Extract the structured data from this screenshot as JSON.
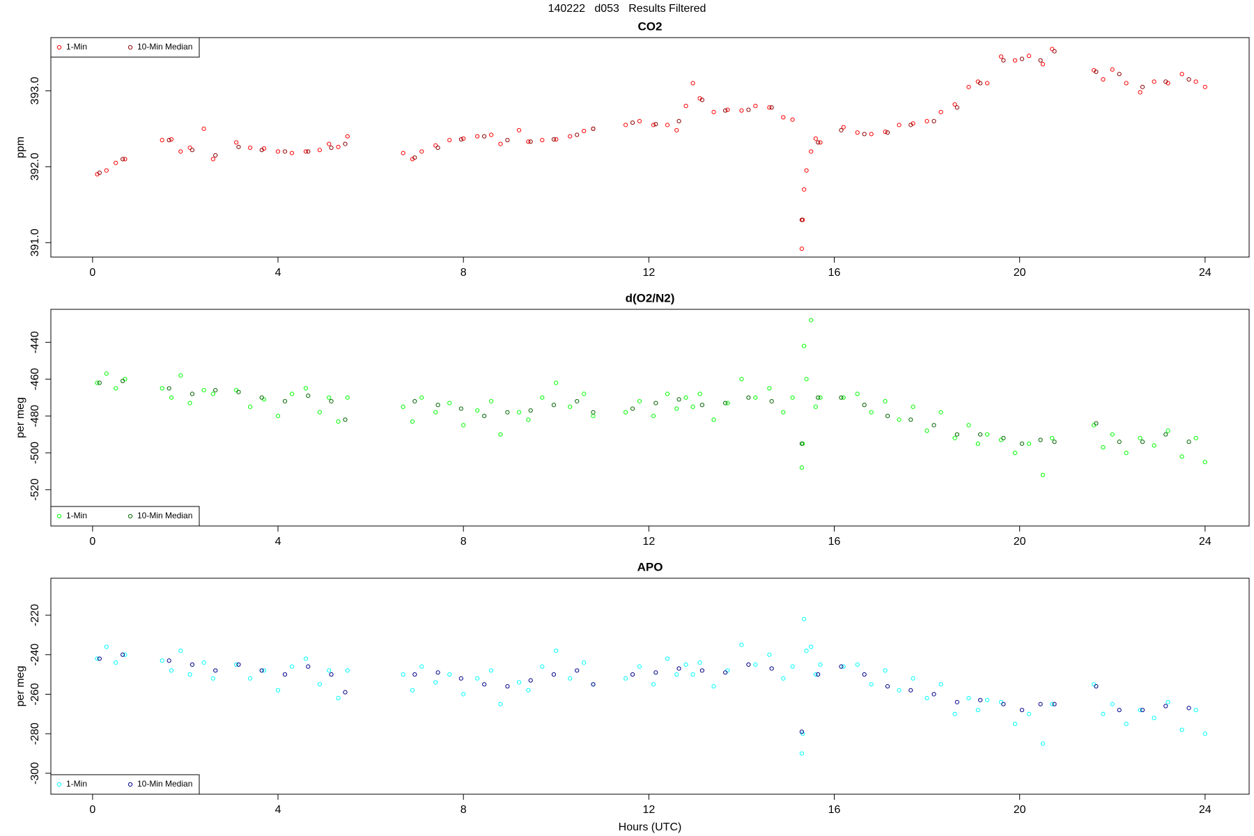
{
  "title": "140222   d053   Results Filtered",
  "chart_data": [
    {
      "type": "scatter",
      "title": "CO2",
      "ylabel": "ppm",
      "xlim": [
        -0.9,
        24.95
      ],
      "xticks": [
        0,
        4,
        8,
        12,
        16,
        20,
        24
      ],
      "ylim": [
        390.81,
        393.7
      ],
      "yticks": [
        {
          "value": 391,
          "label": "391.0"
        },
        {
          "value": 392,
          "label": "392.0"
        },
        {
          "value": 393,
          "label": "393.0"
        }
      ],
      "legend": "top-left",
      "series": [
        {
          "name": "1-Min",
          "color": "#ff0000",
          "x": [
            0.1,
            0.3,
            0.5,
            0.7,
            1.5,
            1.7,
            1.9,
            2.1,
            2.4,
            2.6,
            3.1,
            3.4,
            3.7,
            4.0,
            4.3,
            4.6,
            4.9,
            5.1,
            5.3,
            5.5,
            6.7,
            6.9,
            7.1,
            7.4,
            7.7,
            8.0,
            8.3,
            8.6,
            8.8,
            9.2,
            9.4,
            9.7,
            10.0,
            10.3,
            10.6,
            10.8,
            11.5,
            11.8,
            12.1,
            12.4,
            12.6,
            12.8,
            12.95,
            13.1,
            13.4,
            13.7,
            14.0,
            14.3,
            14.6,
            14.9,
            15.1,
            15.3,
            15.32,
            15.35,
            15.4,
            15.5,
            15.6,
            15.7,
            16.2,
            16.5,
            16.8,
            17.1,
            17.4,
            17.7,
            18.0,
            18.3,
            18.6,
            18.9,
            19.1,
            19.3,
            19.6,
            19.9,
            20.2,
            20.5,
            20.7,
            21.6,
            21.8,
            22.0,
            22.3,
            22.6,
            22.9,
            23.2,
            23.5,
            23.8,
            24.0
          ],
          "values": [
            391.9,
            391.95,
            392.05,
            392.1,
            392.35,
            392.36,
            392.2,
            392.25,
            392.5,
            392.1,
            392.32,
            392.25,
            392.24,
            392.2,
            392.18,
            392.2,
            392.22,
            392.3,
            392.26,
            392.4,
            392.18,
            392.1,
            392.2,
            392.28,
            392.35,
            392.37,
            392.4,
            392.42,
            392.3,
            392.48,
            392.33,
            392.35,
            392.36,
            392.4,
            392.47,
            392.5,
            392.55,
            392.6,
            392.55,
            392.55,
            392.48,
            392.8,
            393.1,
            392.9,
            392.72,
            392.75,
            392.74,
            392.8,
            392.78,
            392.65,
            392.62,
            390.92,
            391.3,
            391.7,
            391.95,
            392.2,
            392.37,
            392.32,
            392.52,
            392.45,
            392.43,
            392.46,
            392.55,
            392.57,
            392.6,
            392.72,
            392.82,
            393.05,
            393.12,
            393.1,
            393.45,
            393.4,
            393.46,
            393.35,
            393.55,
            393.27,
            393.15,
            393.28,
            393.1,
            392.98,
            393.12,
            393.1,
            393.22,
            393.12,
            393.05
          ]
        },
        {
          "name": "10-Min Median",
          "color": "#8b0000",
          "x": [
            0.15,
            0.65,
            1.65,
            2.15,
            2.65,
            3.15,
            3.65,
            4.15,
            4.65,
            5.15,
            5.45,
            6.95,
            7.45,
            7.95,
            8.45,
            8.95,
            9.45,
            9.95,
            10.45,
            10.8,
            11.65,
            12.15,
            12.65,
            13.15,
            13.65,
            14.15,
            14.65,
            15.3,
            15.65,
            16.15,
            16.65,
            17.15,
            17.65,
            18.15,
            18.65,
            19.15,
            19.65,
            20.05,
            20.45,
            20.75,
            21.65,
            22.15,
            22.65,
            23.15,
            23.65
          ],
          "values": [
            391.92,
            392.1,
            392.35,
            392.22,
            392.15,
            392.26,
            392.22,
            392.2,
            392.2,
            392.25,
            392.3,
            392.12,
            392.25,
            392.36,
            392.4,
            392.35,
            392.33,
            392.36,
            392.42,
            392.5,
            392.58,
            392.56,
            392.6,
            392.88,
            392.74,
            392.75,
            392.78,
            391.3,
            392.32,
            392.48,
            392.43,
            392.45,
            392.55,
            392.6,
            392.78,
            393.1,
            393.4,
            393.42,
            393.4,
            393.52,
            393.25,
            393.22,
            393.05,
            393.12,
            393.15
          ]
        }
      ]
    },
    {
      "type": "scatter",
      "title": "d(O2/N2)",
      "ylabel": "per meg",
      "xlim": [
        -0.9,
        24.95
      ],
      "xticks": [
        0,
        4,
        8,
        12,
        16,
        20,
        24
      ],
      "ylim": [
        -539.7,
        -422.1
      ],
      "yticks": [
        -520,
        -500,
        -480,
        -460,
        -440
      ],
      "legend": "bottom-left",
      "series": [
        {
          "name": "1-Min",
          "color": "#00ff00",
          "x": [
            0.1,
            0.3,
            0.5,
            0.7,
            1.5,
            1.7,
            1.9,
            2.1,
            2.4,
            2.6,
            3.1,
            3.4,
            3.7,
            4.0,
            4.3,
            4.6,
            4.9,
            5.1,
            5.3,
            5.5,
            6.7,
            6.9,
            7.1,
            7.4,
            7.7,
            8.0,
            8.3,
            8.6,
            8.8,
            9.2,
            9.4,
            9.7,
            10.0,
            10.3,
            10.6,
            10.8,
            11.5,
            11.8,
            12.1,
            12.4,
            12.6,
            12.8,
            12.95,
            13.1,
            13.4,
            13.7,
            14.0,
            14.3,
            14.6,
            14.9,
            15.1,
            15.3,
            15.32,
            15.35,
            15.4,
            15.5,
            15.6,
            15.7,
            16.2,
            16.5,
            16.8,
            17.1,
            17.4,
            17.7,
            18.0,
            18.3,
            18.6,
            18.9,
            19.1,
            19.3,
            19.6,
            19.9,
            20.2,
            20.5,
            20.7,
            21.6,
            21.8,
            22.0,
            22.3,
            22.6,
            22.9,
            23.2,
            23.5,
            23.8,
            24.0
          ],
          "values": [
            -462,
            -457,
            -465,
            -460,
            -465,
            -470,
            -458,
            -473,
            -466,
            -468,
            -466,
            -475,
            -471,
            -480,
            -468,
            -465,
            -478,
            -470,
            -483,
            -470,
            -475,
            -483,
            -470,
            -478,
            -473,
            -485,
            -477,
            -472,
            -490,
            -478,
            -482,
            -470,
            -462,
            -475,
            -468,
            -480,
            -478,
            -472,
            -480,
            -468,
            -476,
            -470,
            -475,
            -468,
            -482,
            -473,
            -460,
            -470,
            -465,
            -478,
            -470,
            -508,
            -495,
            -442,
            -460,
            -428,
            -475,
            -470,
            -470,
            -468,
            -478,
            -472,
            -482,
            -475,
            -488,
            -478,
            -492,
            -485,
            -495,
            -490,
            -493,
            -500,
            -495,
            -512,
            -492,
            -485,
            -497,
            -490,
            -500,
            -492,
            -496,
            -488,
            -502,
            -492,
            -505
          ]
        },
        {
          "name": "10-Min Median",
          "color": "#006400",
          "x": [
            0.15,
            0.65,
            1.65,
            2.15,
            2.65,
            3.15,
            3.65,
            4.15,
            4.65,
            5.15,
            5.45,
            6.95,
            7.45,
            7.95,
            8.45,
            8.95,
            9.45,
            9.95,
            10.45,
            10.8,
            11.65,
            12.15,
            12.65,
            13.15,
            13.65,
            14.15,
            14.65,
            15.3,
            15.65,
            16.15,
            16.65,
            17.15,
            17.65,
            18.15,
            18.65,
            19.15,
            19.65,
            20.05,
            20.45,
            20.75,
            21.65,
            22.15,
            22.65,
            23.15,
            23.65
          ],
          "values": [
            -462,
            -461,
            -465,
            -468,
            -466,
            -467,
            -470,
            -472,
            -469,
            -472,
            -482,
            -472,
            -474,
            -476,
            -480,
            -478,
            -477,
            -474,
            -472,
            -478,
            -476,
            -473,
            -471,
            -474,
            -473,
            -470,
            -472,
            -495,
            -470,
            -470,
            -474,
            -480,
            -482,
            -485,
            -490,
            -490,
            -492,
            -495,
            -493,
            -494,
            -484,
            -494,
            -494,
            -490,
            -494
          ]
        }
      ]
    },
    {
      "type": "scatter",
      "title": "APO",
      "ylabel": "per meg",
      "xlabel": "Hours (UTC)",
      "xlim": [
        -0.9,
        24.95
      ],
      "xticks": [
        0,
        4,
        8,
        12,
        16,
        20,
        24
      ],
      "ylim": [
        -310.6,
        -201.3
      ],
      "yticks": [
        -300,
        -280,
        -260,
        -240,
        -220
      ],
      "legend": "bottom-left",
      "series": [
        {
          "name": "1-Min",
          "color": "#00ffff",
          "x": [
            0.1,
            0.3,
            0.5,
            0.7,
            1.5,
            1.7,
            1.9,
            2.1,
            2.4,
            2.6,
            3.1,
            3.4,
            3.7,
            4.0,
            4.3,
            4.6,
            4.9,
            5.1,
            5.3,
            5.5,
            6.7,
            6.9,
            7.1,
            7.4,
            7.7,
            8.0,
            8.3,
            8.6,
            8.8,
            9.2,
            9.4,
            9.7,
            10.0,
            10.3,
            10.6,
            10.8,
            11.5,
            11.8,
            12.1,
            12.4,
            12.6,
            12.8,
            12.95,
            13.1,
            13.4,
            13.7,
            14.0,
            14.3,
            14.6,
            14.9,
            15.1,
            15.3,
            15.32,
            15.35,
            15.4,
            15.5,
            15.6,
            15.7,
            16.2,
            16.5,
            16.8,
            17.1,
            17.4,
            17.7,
            18.0,
            18.3,
            18.6,
            18.9,
            19.1,
            19.3,
            19.6,
            19.9,
            20.2,
            20.5,
            20.7,
            21.6,
            21.8,
            22.0,
            22.3,
            22.6,
            22.9,
            23.2,
            23.5,
            23.8,
            24.0
          ],
          "values": [
            -242,
            -236,
            -244,
            -240,
            -243,
            -248,
            -238,
            -250,
            -244,
            -252,
            -245,
            -252,
            -248,
            -258,
            -246,
            -242,
            -255,
            -248,
            -262,
            -248,
            -250,
            -258,
            -246,
            -254,
            -250,
            -260,
            -252,
            -248,
            -265,
            -254,
            -258,
            -246,
            -238,
            -252,
            -244,
            -255,
            -252,
            -246,
            -255,
            -242,
            -250,
            -245,
            -250,
            -244,
            -256,
            -248,
            -235,
            -245,
            -240,
            -252,
            -246,
            -290,
            -280,
            -222,
            -238,
            -236,
            -250,
            -245,
            -246,
            -245,
            -255,
            -248,
            -258,
            -252,
            -262,
            -255,
            -270,
            -262,
            -268,
            -263,
            -264,
            -275,
            -270,
            -285,
            -265,
            -255,
            -270,
            -265,
            -275,
            -268,
            -272,
            -264,
            -278,
            -268,
            -280
          ]
        },
        {
          "name": "10-Min Median",
          "color": "#00008b",
          "x": [
            0.15,
            0.65,
            1.65,
            2.15,
            2.65,
            3.15,
            3.65,
            4.15,
            4.65,
            5.15,
            5.45,
            6.95,
            7.45,
            7.95,
            8.45,
            8.95,
            9.45,
            9.95,
            10.45,
            10.8,
            11.65,
            12.15,
            12.65,
            13.15,
            13.65,
            14.15,
            14.65,
            15.3,
            15.65,
            16.15,
            16.65,
            17.15,
            17.65,
            18.15,
            18.65,
            19.15,
            19.65,
            20.05,
            20.45,
            20.75,
            21.65,
            22.15,
            22.65,
            23.15,
            23.65
          ],
          "values": [
            -242,
            -240,
            -243,
            -245,
            -248,
            -245,
            -248,
            -250,
            -246,
            -250,
            -259,
            -250,
            -249,
            -252,
            -255,
            -256,
            -253,
            -250,
            -248,
            -255,
            -250,
            -249,
            -247,
            -248,
            -249,
            -245,
            -247,
            -279,
            -250,
            -246,
            -250,
            -256,
            -258,
            -260,
            -264,
            -263,
            -265,
            -268,
            -265,
            -265,
            -256,
            -268,
            -268,
            -266,
            -267
          ]
        }
      ]
    }
  ]
}
